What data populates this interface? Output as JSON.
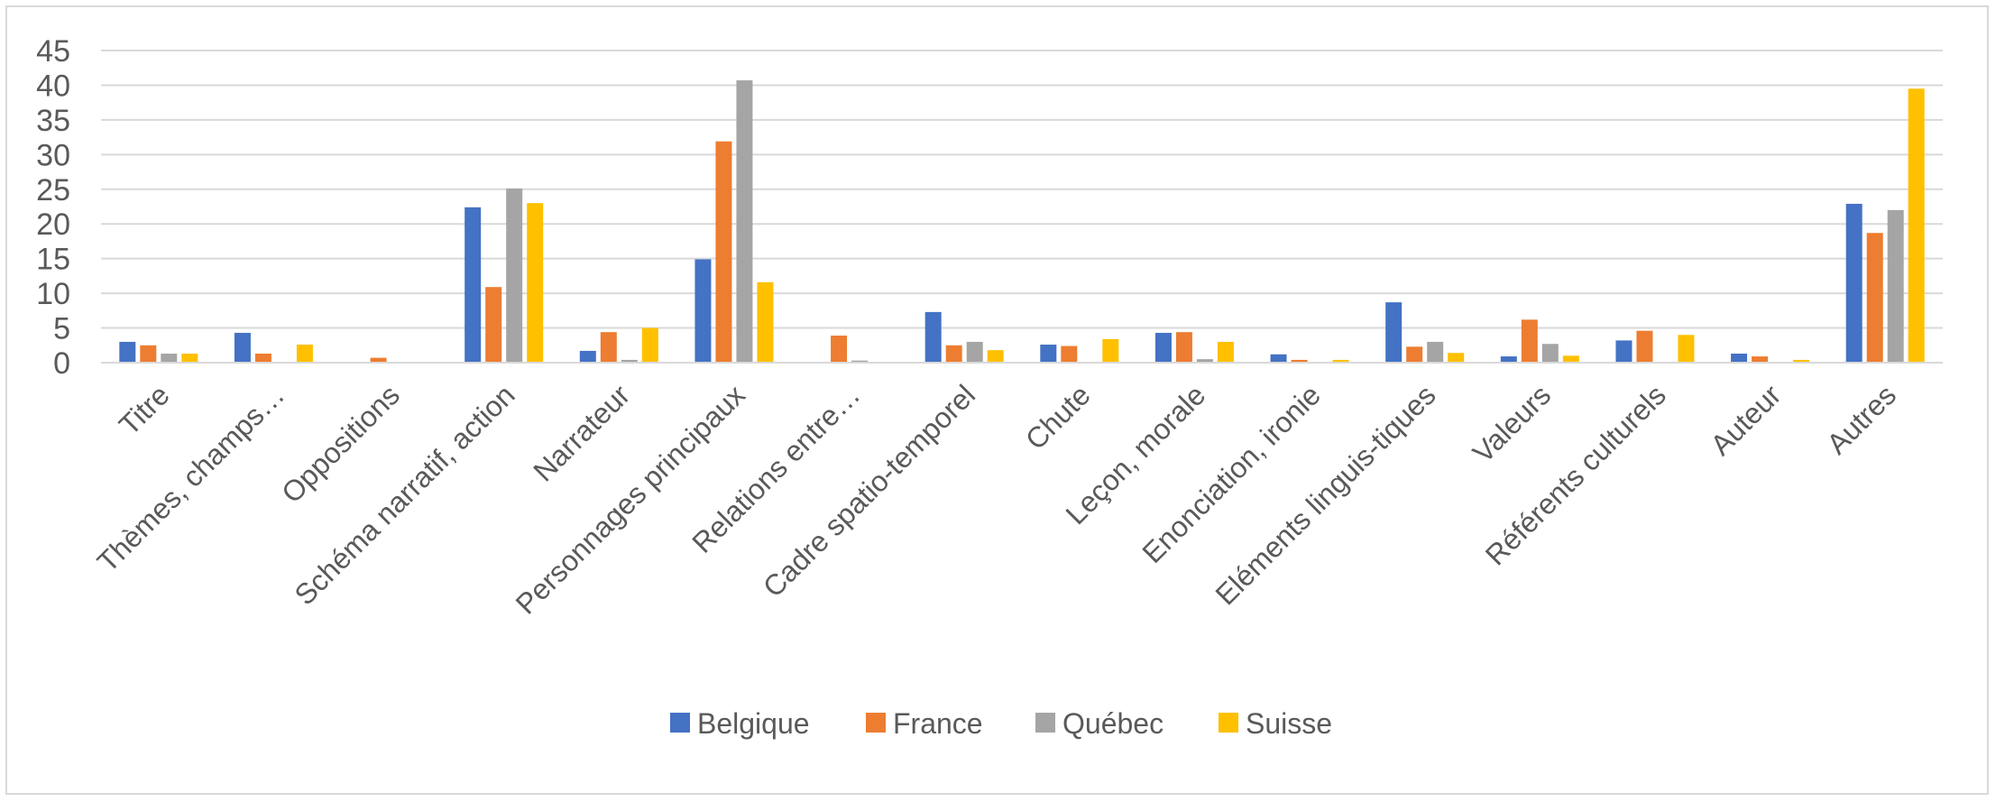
{
  "chart_data": {
    "type": "bar",
    "categories": [
      "Titre",
      "Thèmes, champs…",
      "Oppositions",
      "Schéma narratif, action",
      "Narrateur",
      "Personnages principaux",
      "Relations entre…",
      "Cadre spatio-temporel",
      "Chute",
      "Leçon, morale",
      "Enonciation, ironie",
      "Eléments linguis-tiques",
      "Valeurs",
      "Référents culturels",
      "Auteur",
      "Autres"
    ],
    "series": [
      {
        "name": "Belgique",
        "color": "#4472C4",
        "values": [
          3.0,
          4.3,
          0,
          22.4,
          1.7,
          14.9,
          0,
          7.3,
          2.6,
          4.3,
          1.2,
          8.7,
          0.9,
          3.2,
          1.3,
          22.9
        ]
      },
      {
        "name": "France",
        "color": "#ED7D31",
        "values": [
          2.5,
          1.3,
          0.7,
          10.9,
          4.4,
          31.9,
          3.9,
          2.5,
          2.4,
          4.4,
          0.4,
          2.3,
          6.2,
          4.6,
          0.9,
          18.7
        ]
      },
      {
        "name": "Québec",
        "color": "#A5A5A5",
        "values": [
          1.3,
          0,
          0,
          25.1,
          0.4,
          40.7,
          0.3,
          3.0,
          0,
          0.5,
          0,
          3.0,
          2.7,
          0,
          0,
          22.0
        ]
      },
      {
        "name": "Suisse",
        "color": "#FFC000",
        "values": [
          1.3,
          2.6,
          0,
          23.0,
          5.0,
          11.6,
          0,
          1.8,
          3.4,
          3.0,
          0.4,
          1.4,
          1.0,
          4.0,
          0.4,
          39.5
        ]
      }
    ],
    "title": "",
    "xlabel": "",
    "ylabel": "",
    "ylim": [
      0,
      45
    ],
    "yticks": [
      "0",
      "5",
      "10",
      "15",
      "20",
      "25",
      "30",
      "35",
      "40",
      "45"
    ],
    "grid": true,
    "legend_position": "bottom"
  }
}
